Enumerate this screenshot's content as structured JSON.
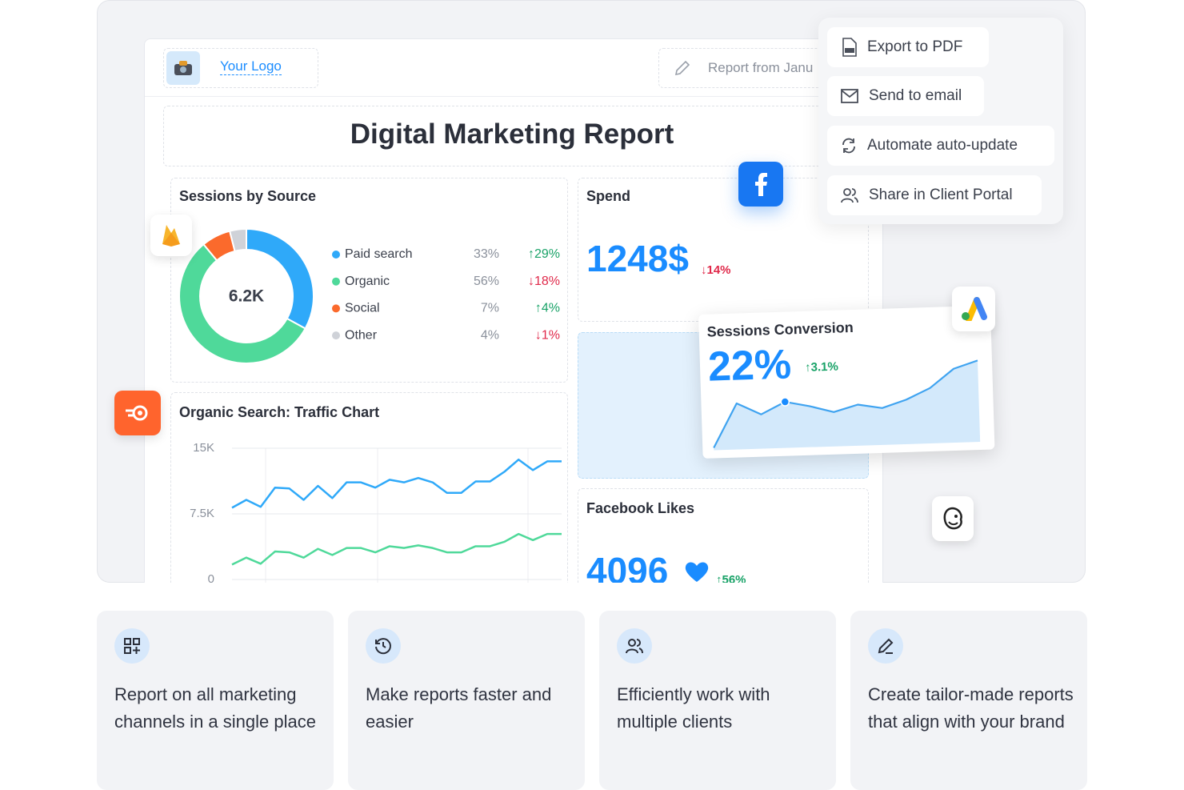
{
  "header": {
    "logo_text": "Your Logo",
    "report_range": "Report from Janu"
  },
  "title": "Digital Marketing Report",
  "menu": [
    "Export to PDF",
    "Send to email",
    "Automate auto-update",
    "Share in Client Portal"
  ],
  "sessions_by_source": {
    "type": "pie",
    "title": "Sessions by Source",
    "center_label": "6.2K",
    "categories": [
      "Paid search",
      "Organic",
      "Social",
      "Other"
    ],
    "values": [
      33,
      56,
      7,
      4
    ],
    "value_labels": [
      "33%",
      "56%",
      "7%",
      "4%"
    ],
    "changes": [
      "↑29%",
      "↓18%",
      "↑4%",
      "↓1%"
    ],
    "colors": [
      "#2fa9f9",
      "#4fd99a",
      "#fb6a2c",
      "#cfd2d8"
    ]
  },
  "spend": {
    "title": "Spend",
    "value": "1248$",
    "change": "↓14%"
  },
  "sessions_conversion": {
    "type": "area",
    "title": "Sessions Conversion",
    "value": "22%",
    "change": "↑3.1%",
    "values": [
      0,
      52,
      38,
      52,
      46,
      38,
      46,
      41,
      50,
      63,
      85,
      94
    ],
    "marker_index": 3,
    "color": "#3fa3f0"
  },
  "traffic_chart": {
    "type": "line",
    "title": "Organic Search: Traffic Chart",
    "ylim": [
      0,
      15000
    ],
    "yticks": [
      0,
      {
        "value": 7500,
        "label": "7.5K"
      },
      {
        "value": 15000,
        "label": "15K"
      }
    ],
    "grid": true,
    "series": [
      {
        "color": "#2fa9f9",
        "values": [
          8200,
          9100,
          8300,
          10500,
          10400,
          9100,
          10700,
          9300,
          11100,
          11100,
          10500,
          11400,
          11100,
          11600,
          11100,
          9900,
          9900,
          11200,
          11200,
          12300,
          13700,
          12500,
          13500,
          13500
        ]
      },
      {
        "color": "#4fd99a",
        "values": [
          1700,
          2500,
          1800,
          3200,
          3100,
          2500,
          3500,
          2800,
          3600,
          3600,
          3100,
          3800,
          3600,
          3900,
          3600,
          3100,
          3100,
          3800,
          3800,
          4300,
          5200,
          4500,
          5200,
          5200
        ]
      }
    ]
  },
  "facebook_likes": {
    "title": "Facebook Likes",
    "value": "4096",
    "change": "↑56%"
  },
  "features": [
    "Report on all marketing channels in a single place",
    "Make reports faster and easier",
    "Efficiently work with multiple clients",
    "Create tailor-made reports that align with your brand"
  ]
}
